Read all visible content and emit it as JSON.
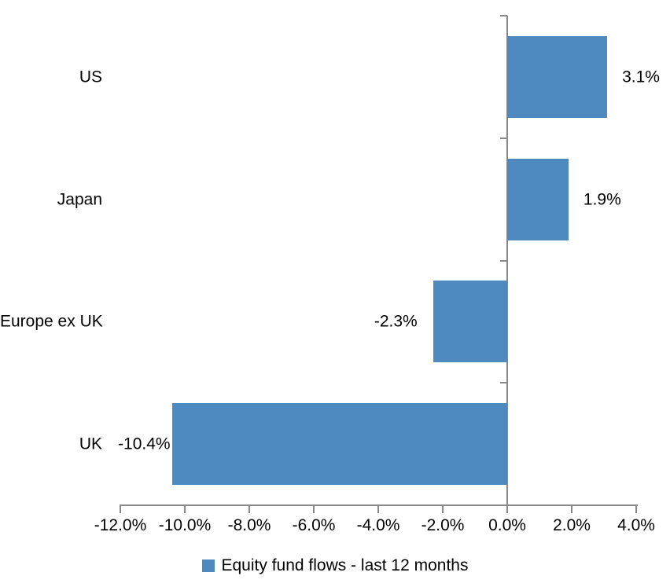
{
  "chart_data": {
    "type": "bar",
    "orientation": "horizontal",
    "title": "",
    "categories": [
      "US",
      "Japan",
      "Europe ex UK",
      "UK"
    ],
    "values": [
      3.1,
      1.9,
      -2.3,
      -10.4
    ],
    "data_labels": [
      "3.1%",
      "1.9%",
      "-2.3%",
      "-10.4%"
    ],
    "series_name": "Equity fund flows - last 12 months",
    "xlim": [
      -12,
      4
    ],
    "x_tick_step": 2,
    "x_ticks": [
      {
        "value": -12,
        "label": "-12.0%"
      },
      {
        "value": -10,
        "label": "-10.0%"
      },
      {
        "value": -8,
        "label": "-8.0%"
      },
      {
        "value": -6,
        "label": "-6.0%"
      },
      {
        "value": -4,
        "label": "-4.0%"
      },
      {
        "value": -2,
        "label": "-2.0%"
      },
      {
        "value": 0,
        "label": "0.0%"
      },
      {
        "value": 2,
        "label": "2.0%"
      },
      {
        "value": 4,
        "label": "4.0%"
      }
    ],
    "grid": "off",
    "legend_position": "bottom",
    "colors": {
      "bar": "#4E8ABF",
      "axis": "#898989",
      "text": "#000000",
      "background": "#FFFFFF"
    },
    "label_gaps": [
      19,
      19,
      20,
      2
    ]
  }
}
